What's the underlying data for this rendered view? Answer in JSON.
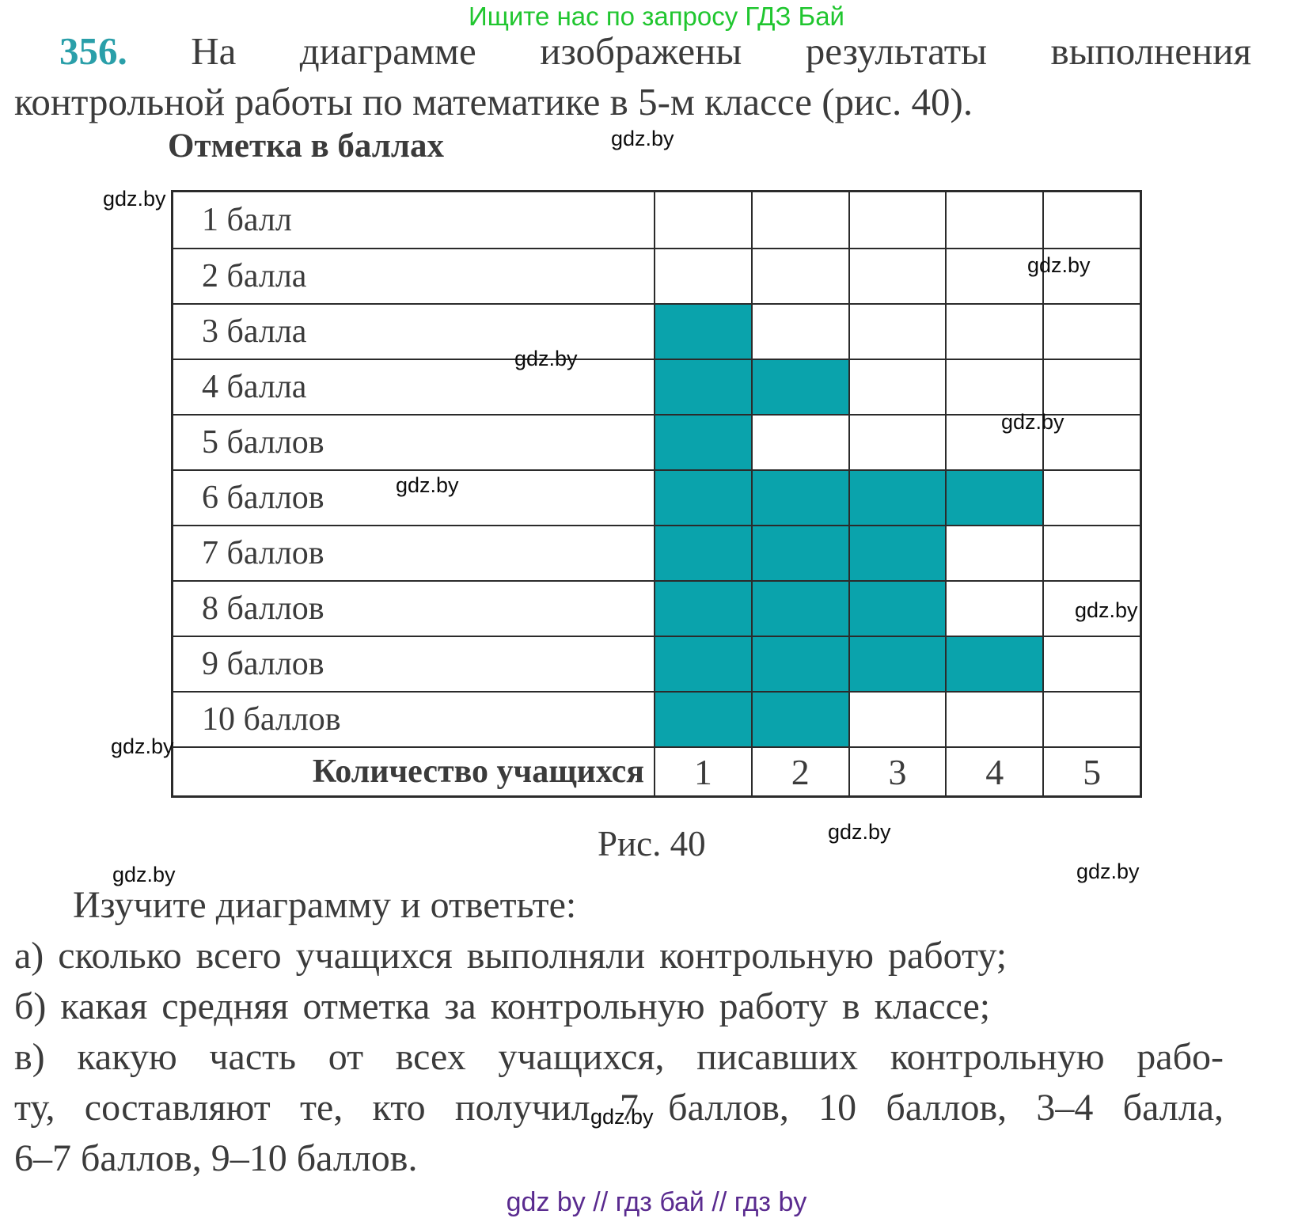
{
  "banner": {
    "text": "Ищите нас по запросу ГДЗ Бай"
  },
  "problem": {
    "number": "356.",
    "statement_line1": "На диаграмме изображены результаты выполнения",
    "statement_line2": "контрольной работы по математике в 5-м классе (рис. 40)."
  },
  "chart_data": {
    "type": "bar",
    "orientation": "horizontal",
    "title": "Отметка в баллах",
    "categories": [
      "1 балл",
      "2 балла",
      "3 балла",
      "4 балла",
      "5 баллов",
      "6 баллов",
      "7 баллов",
      "8 баллов",
      "9 баллов",
      "10 баллов"
    ],
    "values": [
      0,
      0,
      1,
      2,
      1,
      4,
      3,
      3,
      4,
      2
    ],
    "xlabel": "Количество учащихся",
    "x_ticks": [
      "1",
      "2",
      "3",
      "4",
      "5"
    ],
    "xlim": [
      0,
      5
    ],
    "grid": true,
    "caption": "Рис. 40",
    "fill_color": "#0aa3ac"
  },
  "questions": {
    "intro": "Изучите диаграмму и ответьте:",
    "a": "а) сколько всего учащихся выполняли контрольную работу;",
    "b": "б) какая средняя отметка за контрольную работу в классе;",
    "c_line1": "в) какую часть от всех учащихся, писавших контрольную рабо-",
    "c_line2": "ту, составляют те, кто получил 7 баллов, 10 баллов, 3–4 балла,",
    "c_line3": "6–7 баллов, 9–10 баллов."
  },
  "watermark": {
    "text": "gdz.by"
  },
  "site_footer": {
    "text": "gdz by  //  гдз бай  //  гдз by"
  },
  "colors": {
    "bar_fill_teal": "#0aa3ac",
    "problem_number_teal": "#2a9fa9",
    "banner_green": "#20c62f",
    "footer_purple": "#5a2b8f",
    "text_dark": "#3b3b3b",
    "grid_line": "#2b2b2b"
  }
}
